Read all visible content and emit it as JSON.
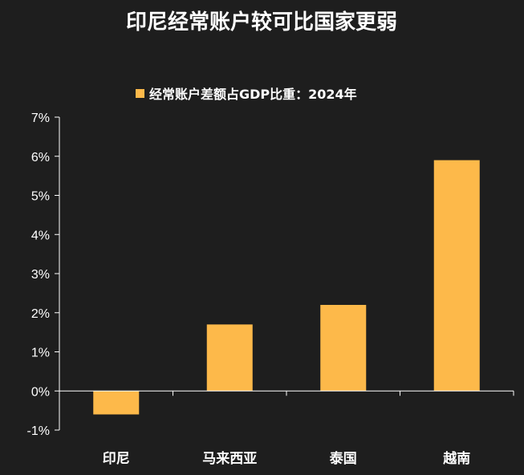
{
  "chart_data": {
    "type": "bar",
    "title": "印尼经常账户较可比国家更弱",
    "legend": "经常账户差额占GDP比重：2024年",
    "legend_position": "top-center",
    "categories": [
      "印尼",
      "马来西亚",
      "泰国",
      "越南"
    ],
    "series": [
      {
        "name": "经常账户差额占GDP比重：2024年",
        "values": [
          -0.6,
          1.7,
          2.2,
          5.9
        ]
      }
    ],
    "ylim": [
      -1,
      7
    ],
    "yticks": [
      -1,
      0,
      1,
      2,
      3,
      4,
      5,
      6,
      7
    ],
    "ytick_labels": [
      "-1%",
      "0%",
      "1%",
      "2%",
      "3%",
      "4%",
      "5%",
      "6%",
      "7%"
    ],
    "grid": false,
    "bar_color": "#FDB94A",
    "background": "#1e1e1e"
  }
}
